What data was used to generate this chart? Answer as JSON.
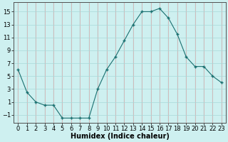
{
  "x": [
    0,
    1,
    2,
    3,
    4,
    5,
    6,
    7,
    8,
    9,
    10,
    11,
    12,
    13,
    14,
    15,
    16,
    17,
    18,
    19,
    20,
    21,
    22,
    23
  ],
  "y": [
    6,
    2.5,
    1,
    0.5,
    0.5,
    -1.5,
    -1.5,
    -1.5,
    -1.5,
    3,
    6,
    8,
    10.5,
    13,
    15,
    15,
    15.5,
    14,
    11.5,
    8,
    6.5,
    6.5,
    5,
    4
  ],
  "line_color": "#1a7070",
  "marker": "+",
  "marker_size": 3,
  "marker_color": "#1a7070",
  "bg_color": "#cef0f0",
  "grid_color_teal": "#a8d8d8",
  "grid_color_pink": "#d4a8a8",
  "xlabel": "Humidex (Indice chaleur)",
  "xlabel_fontsize": 7,
  "yticks": [
    -1,
    1,
    3,
    5,
    7,
    9,
    11,
    13,
    15
  ],
  "xticks": [
    0,
    1,
    2,
    3,
    4,
    5,
    6,
    7,
    8,
    9,
    10,
    11,
    12,
    13,
    14,
    15,
    16,
    17,
    18,
    19,
    20,
    21,
    22,
    23
  ],
  "ylim": [
    -2.2,
    16.5
  ],
  "xlim": [
    -0.5,
    23.5
  ]
}
